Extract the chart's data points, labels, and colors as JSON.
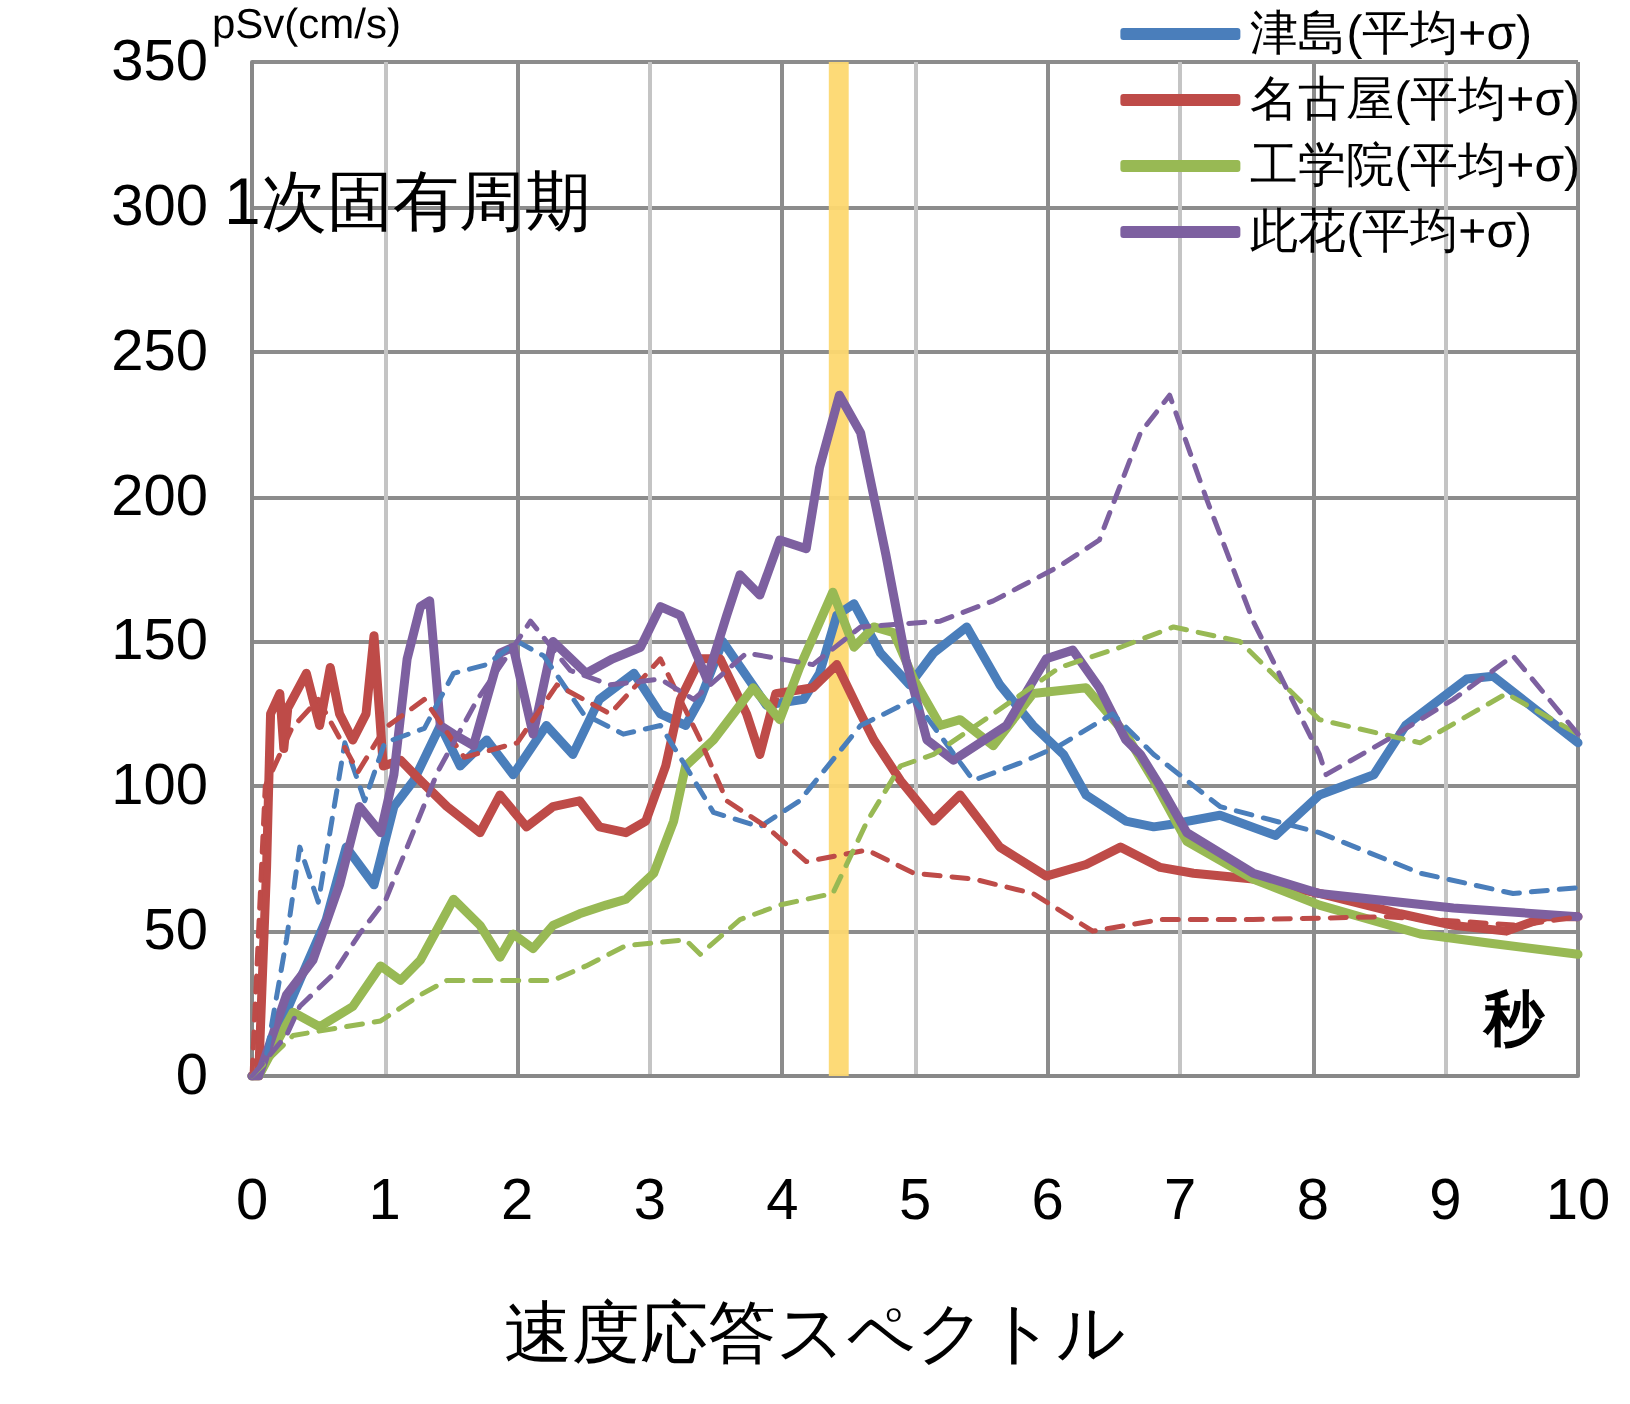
{
  "chart_data": {
    "type": "line",
    "xlabel": "速度応答スペクトル",
    "ylabel": "pSv(cm/s)",
    "annotations": [
      "1次固有周期",
      "秒"
    ],
    "xlim": [
      0,
      10
    ],
    "xticks": [
      0,
      1,
      2,
      3,
      4,
      5,
      6,
      7,
      8,
      9,
      10
    ],
    "ylim": [
      0,
      350
    ],
    "yticks": [
      0,
      50,
      100,
      150,
      200,
      250,
      300,
      350
    ],
    "grid": true,
    "legend": "top right",
    "marker": "none",
    "bands": [
      {
        "axis": "x",
        "from": 4.35,
        "to": 4.5,
        "color": "#fdd870"
      }
    ],
    "series": [
      {
        "name": "津島(平均+σ)",
        "color": "#4a7ebb",
        "line_style": "solid",
        "x": [
          0,
          0.06,
          0.36,
          0.56,
          0.71,
          0.92,
          1.07,
          1.22,
          1.42,
          1.57,
          1.77,
          1.97,
          2.22,
          2.42,
          2.62,
          2.88,
          3.08,
          3.27,
          3.38,
          3.55,
          3.88,
          4.16,
          4.28,
          4.41,
          4.54,
          4.74,
          4.96,
          5.14,
          5.39,
          5.64,
          5.89,
          6.12,
          6.29,
          6.59,
          6.8,
          6.95,
          7.3,
          7.72,
          8.05,
          8.46,
          8.7,
          9.16,
          9.36,
          10
        ],
        "values": [
          0,
          1,
          33,
          54,
          79,
          66,
          93,
          102,
          121,
          107,
          116,
          104,
          121,
          111,
          130,
          139,
          125,
          121,
          130,
          150,
          128,
          130,
          139,
          159,
          163,
          146,
          135,
          146,
          155,
          135,
          121,
          111,
          97,
          88,
          86,
          87,
          90,
          83,
          97,
          104,
          121,
          137,
          138,
          115
        ]
      },
      {
        "name": "名古屋(平均+σ)",
        "color": "#be4b48",
        "line_style": "solid",
        "x": [
          0,
          0.05,
          0.11,
          0.14,
          0.21,
          0.24,
          0.27,
          0.41,
          0.51,
          0.59,
          0.66,
          0.76,
          0.86,
          0.92,
          0.99,
          1.12,
          1.27,
          1.47,
          1.72,
          1.87,
          2.07,
          2.27,
          2.47,
          2.62,
          2.82,
          2.97,
          3.12,
          3.23,
          3.38,
          3.53,
          3.73,
          3.83,
          3.95,
          4.23,
          4.41,
          4.59,
          4.69,
          4.89,
          5.14,
          5.34,
          5.64,
          5.99,
          6.29,
          6.55,
          6.85,
          7.1,
          7.55,
          8.05,
          8.66,
          9.06,
          9.46,
          9.76,
          10
        ],
        "values": [
          0,
          0,
          72,
          125,
          132,
          113,
          127,
          139,
          121,
          141,
          125,
          116,
          125,
          152,
          107,
          109,
          102,
          93,
          84,
          97,
          86,
          93,
          95,
          86,
          84,
          88,
          107,
          130,
          144,
          144,
          125,
          111,
          132,
          134,
          142,
          125,
          116,
          102,
          88,
          97,
          79,
          69,
          73,
          79,
          72,
          70,
          68,
          63,
          56,
          52,
          50,
          55,
          55
        ]
      },
      {
        "name": "工学院(平均+σ)",
        "color": "#98b954",
        "line_style": "solid",
        "x": [
          0,
          0.05,
          0.31,
          0.51,
          0.76,
          0.97,
          1.12,
          1.27,
          1.52,
          1.72,
          1.87,
          1.97,
          2.12,
          2.27,
          2.47,
          2.67,
          2.82,
          3.03,
          3.18,
          3.27,
          3.48,
          3.78,
          3.98,
          4.13,
          4.38,
          4.54,
          4.69,
          4.84,
          4.99,
          5.19,
          5.34,
          5.59,
          5.89,
          6.29,
          6.59,
          6.8,
          7.05,
          7.55,
          8.05,
          8.81,
          9.31,
          10
        ],
        "values": [
          0,
          0,
          22,
          17,
          24,
          38,
          33,
          40,
          61,
          52,
          41,
          49,
          44,
          52,
          56,
          59,
          61,
          70,
          88,
          107,
          116,
          134,
          123,
          141,
          167,
          148,
          155,
          153,
          137,
          121,
          123,
          114,
          132,
          134,
          118,
          102,
          81,
          68,
          59,
          49,
          46,
          42
        ]
      },
      {
        "name": "此花(平均+σ)",
        "color": "#7d60a0",
        "line_style": "solid",
        "x": [
          0,
          0.05,
          0.26,
          0.46,
          0.66,
          0.81,
          0.97,
          1.07,
          1.17,
          1.27,
          1.34,
          1.42,
          1.52,
          1.67,
          1.87,
          1.97,
          2.12,
          2.27,
          2.52,
          2.72,
          2.93,
          3.08,
          3.23,
          3.43,
          3.58,
          3.68,
          3.83,
          3.98,
          4.18,
          4.28,
          4.43,
          4.59,
          4.78,
          4.93,
          5.09,
          5.29,
          5.69,
          5.99,
          6.19,
          6.39,
          6.59,
          6.7,
          6.85,
          7.05,
          7.55,
          8.05,
          9.06,
          10
        ],
        "values": [
          0,
          0,
          28,
          40,
          66,
          93,
          84,
          104,
          144,
          162,
          164,
          121,
          118,
          114,
          146,
          148,
          118,
          150,
          139,
          144,
          148,
          162,
          159,
          137,
          159,
          173,
          166,
          185,
          182,
          210,
          235,
          222,
          180,
          144,
          116,
          109,
          121,
          144,
          147,
          134,
          116,
          111,
          100,
          84,
          70,
          63,
          58,
          55
        ]
      },
      {
        "color": "#4a7ebb",
        "line_style": "dashed",
        "x": [
          0,
          0.1,
          0.26,
          0.36,
          0.5,
          0.7,
          0.85,
          1,
          1.3,
          1.52,
          1.77,
          2,
          2.2,
          2.5,
          2.8,
          3.08,
          3.27,
          3.48,
          3.83,
          4.13,
          4.59,
          4.99,
          5.44,
          5.79,
          6.09,
          6.49,
          6.8,
          7.3,
          8.05,
          8.81,
          9.51,
          10
        ],
        "values": [
          0,
          5,
          47,
          79,
          60,
          115,
          95,
          115,
          120,
          139,
          142,
          150,
          145,
          125,
          118,
          121,
          107,
          91,
          86,
          95,
          121,
          130,
          102,
          108,
          114,
          125,
          111,
          93,
          84,
          70,
          63,
          65
        ]
      },
      {
        "color": "#be4b48",
        "line_style": "dashed",
        "x": [
          0,
          0.1,
          0.3,
          0.5,
          0.8,
          1,
          1.3,
          1.6,
          2,
          2.3,
          2.7,
          3.08,
          3.38,
          3.58,
          3.88,
          4.18,
          4.64,
          4.99,
          5.44,
          5.89,
          6.34,
          6.85,
          7.55,
          8.56,
          9.56,
          10
        ],
        "values": [
          0,
          100,
          120,
          130,
          105,
          120,
          130,
          110,
          115,
          135,
          125,
          144,
          116,
          95,
          86,
          74,
          78,
          70,
          68,
          63,
          50,
          54,
          54,
          55,
          52,
          55
        ]
      },
      {
        "color": "#98b954",
        "line_style": "dashed",
        "x": [
          0,
          0.31,
          0.97,
          1.27,
          1.47,
          1.72,
          2.27,
          2.52,
          2.82,
          3.27,
          3.38,
          3.68,
          3.98,
          4.38,
          4.64,
          4.89,
          5.14,
          5.59,
          6.09,
          6.55,
          6.95,
          7.45,
          8.05,
          8.81,
          9.46,
          10
        ],
        "values": [
          0,
          14,
          19,
          28,
          33,
          33,
          33,
          38,
          45,
          47,
          42,
          54,
          59,
          63,
          88,
          107,
          111,
          125,
          141,
          148,
          155,
          150,
          123,
          115,
          132,
          118
        ]
      },
      {
        "color": "#7d60a0",
        "line_style": "dashed",
        "x": [
          0,
          0.26,
          0.36,
          0.61,
          0.81,
          1.01,
          1.17,
          1.4,
          1.7,
          2,
          2.1,
          2.4,
          2.7,
          3.08,
          3.33,
          3.73,
          4.23,
          4.59,
          5.19,
          5.59,
          6.09,
          6.39,
          6.7,
          6.92,
          7.2,
          7.55,
          8.05,
          8.1,
          8.56,
          9.06,
          9.51,
          10
        ],
        "values": [
          0,
          14,
          24,
          35,
          49,
          61,
          79,
          105,
          130,
          150,
          157,
          140,
          135,
          137,
          130,
          146,
          142,
          155,
          157,
          164,
          176,
          185,
          222,
          235,
          199,
          157,
          111,
          104,
          116,
          130,
          145,
          118
        ]
      }
    ]
  }
}
